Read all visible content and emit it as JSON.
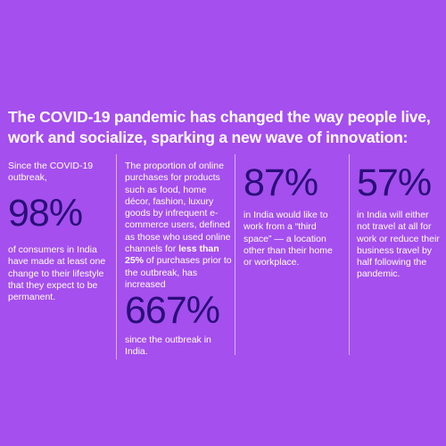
{
  "headline": "The COVID-19 pandemic has changed the way people live, work and socialize, sparking a new wave of innovation:",
  "colors": {
    "background": "#a54fee",
    "text": "#ffffff",
    "stat": "#2a0f7a",
    "divider": "#ffffff"
  },
  "stats": [
    {
      "intro": "Since the COVID-19 outbreak,",
      "value": "98%",
      "description": "of consumers in India have made at least one change to their lifestyle that they expect to be permanent."
    },
    {
      "description_before": "The proportion of online purchases for products such as food, home décor, fashion, luxury goods by infrequent e-commerce users, defined as those who used online channels for ",
      "description_bold": "less than 25%",
      "description_after": " of purchases prior to the outbreak, has increased",
      "value": "667%",
      "tail": "since the outbreak in India."
    },
    {
      "value": "87%",
      "description": "in India would like to work from a “third space” — a location other than their home or workplace."
    },
    {
      "value": "57%",
      "description": "in India will either not travel at all for work or reduce their business travel by half following the pandemic."
    }
  ]
}
